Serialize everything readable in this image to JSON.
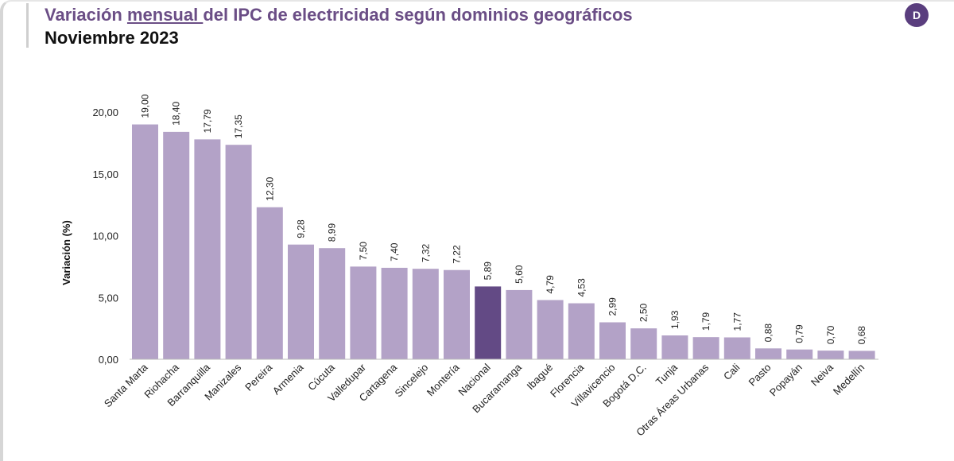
{
  "header": {
    "title_pre": "Variación ",
    "title_u": "mensual ",
    "title_post": "del IPC de electricidad según dominios geográficos",
    "subtitle": "Noviembre 2023",
    "logo_icon": "d-logo-icon",
    "logo_text": "D"
  },
  "colors": {
    "bar": "#b3a2c7",
    "highlight": "#634a85",
    "title": "#6b4e86"
  },
  "chart_data": {
    "type": "bar",
    "ylabel": "Variación (%)",
    "ylim": [
      0,
      20
    ],
    "yticks": [
      "0,00",
      "5,00",
      "10,00",
      "15,00",
      "20,00"
    ],
    "grid": false,
    "highlight": "Nacional",
    "categories": [
      "Santa Marta",
      "Riohacha",
      "Barranquilla",
      "Manizales",
      "Pereira",
      "Armenia",
      "Cúcuta",
      "Valledupar",
      "Cartagena",
      "Sincelejo",
      "Montería",
      "Nacional",
      "Bucaramanga",
      "Ibagué",
      "Florencia",
      "Villavicencio",
      "Bogotá D.C.",
      "Tunja",
      "Otras Áreas Urbanas",
      "Cali",
      "Pasto",
      "Popayán",
      "Neiva",
      "Medellín"
    ],
    "values": [
      19.0,
      18.4,
      17.79,
      17.35,
      12.3,
      9.28,
      8.99,
      7.5,
      7.4,
      7.32,
      7.22,
      5.89,
      5.6,
      4.79,
      4.53,
      2.99,
      2.5,
      1.93,
      1.79,
      1.77,
      0.88,
      0.79,
      0.7,
      0.68
    ],
    "data_labels": [
      "19,00",
      "18,40",
      "17,79",
      "17,35",
      "12,30",
      "9,28",
      "8,99",
      "7,50",
      "7,40",
      "7,32",
      "7,22",
      "5,89",
      "5,60",
      "4,79",
      "4,53",
      "2,99",
      "2,50",
      "1,93",
      "1,79",
      "1,77",
      "0,88",
      "0,79",
      "0,70",
      "0,68"
    ]
  }
}
